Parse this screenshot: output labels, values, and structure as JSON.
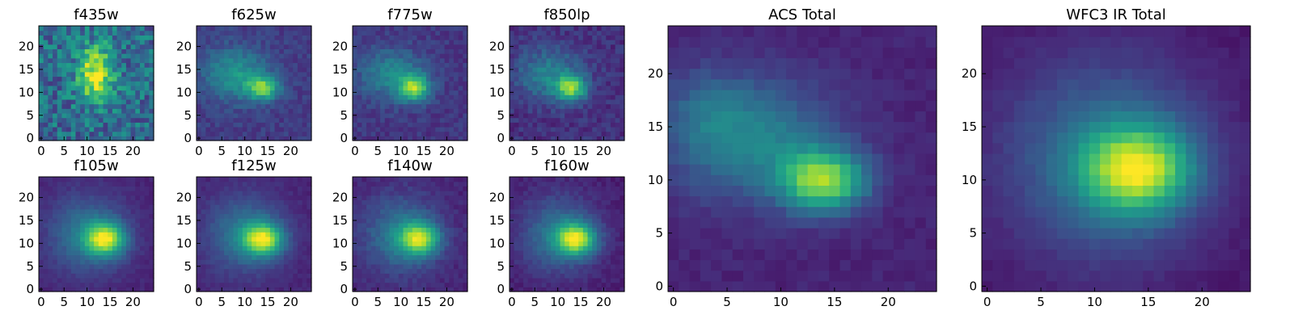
{
  "figure": {
    "colormap": "viridis",
    "colormap_stops": [
      "#440154",
      "#482878",
      "#3e4989",
      "#31688e",
      "#26828e",
      "#1f9e89",
      "#35b779",
      "#6ece58",
      "#b5de2b",
      "#fde725"
    ]
  },
  "chart_data": [
    {
      "type": "heatmap",
      "title": "f435w",
      "grid_size": 25,
      "xlim": [
        0,
        24
      ],
      "ylim": [
        0,
        24
      ],
      "xticks": [
        0,
        5,
        10,
        15,
        20
      ],
      "yticks": [
        0,
        5,
        10,
        15,
        20
      ],
      "values": "25x25 pixel image; bright blob centered near (12, 13), noisy background"
    },
    {
      "type": "heatmap",
      "title": "f625w",
      "grid_size": 25,
      "xlim": [
        0,
        24
      ],
      "ylim": [
        0,
        24
      ],
      "xticks": [
        0,
        5,
        10,
        15,
        20
      ],
      "yticks": [
        0,
        5,
        10,
        15,
        20
      ],
      "values": "25x25 pixel image; bright core near (14, 11), extended emission toward upper-left"
    },
    {
      "type": "heatmap",
      "title": "f775w",
      "grid_size": 25,
      "xlim": [
        0,
        24
      ],
      "ylim": [
        0,
        24
      ],
      "xticks": [
        0,
        5,
        10,
        15,
        20
      ],
      "yticks": [
        0,
        5,
        10,
        15,
        20
      ],
      "values": "25x25 pixel image; bright core near (13, 11)"
    },
    {
      "type": "heatmap",
      "title": "f850lp",
      "grid_size": 25,
      "xlim": [
        0,
        24
      ],
      "ylim": [
        0,
        24
      ],
      "xticks": [
        0,
        5,
        10,
        15,
        20
      ],
      "yticks": [
        0,
        5,
        10,
        15,
        20
      ],
      "values": "25x25 pixel image; bright core near (13, 11)"
    },
    {
      "type": "heatmap",
      "title": "f105w",
      "grid_size": 25,
      "xlim": [
        0,
        24
      ],
      "ylim": [
        0,
        24
      ],
      "xticks": [
        0,
        5,
        10,
        15,
        20
      ],
      "yticks": [
        0,
        5,
        10,
        15,
        20
      ],
      "values": "25x25 pixel image; smooth bright core near (14, 11)"
    },
    {
      "type": "heatmap",
      "title": "f125w",
      "grid_size": 25,
      "xlim": [
        0,
        24
      ],
      "ylim": [
        0,
        24
      ],
      "xticks": [
        0,
        5,
        10,
        15,
        20
      ],
      "yticks": [
        0,
        5,
        10,
        15,
        20
      ],
      "values": "25x25 pixel image; smooth bright core near (14, 11)"
    },
    {
      "type": "heatmap",
      "title": "f140w",
      "grid_size": 25,
      "xlim": [
        0,
        24
      ],
      "ylim": [
        0,
        24
      ],
      "xticks": [
        0,
        5,
        10,
        15,
        20
      ],
      "yticks": [
        0,
        5,
        10,
        15,
        20
      ],
      "values": "25x25 pixel image; smooth bright core near (14, 11)"
    },
    {
      "type": "heatmap",
      "title": "f160w",
      "grid_size": 25,
      "xlim": [
        0,
        24
      ],
      "ylim": [
        0,
        24
      ],
      "xticks": [
        0,
        5,
        10,
        15,
        20
      ],
      "yticks": [
        0,
        5,
        10,
        15,
        20
      ],
      "values": "25x25 pixel image; smooth bright core near (14, 11)"
    },
    {
      "type": "heatmap",
      "title": "ACS Total",
      "grid_size": 25,
      "xlim": [
        0,
        24
      ],
      "ylim": [
        0,
        24
      ],
      "xticks": [
        0,
        5,
        10,
        15,
        20
      ],
      "yticks": [
        0,
        5,
        10,
        15,
        20
      ],
      "values": "25x25 pixel image; peak near (14, 10), extended emission toward (3, 17)"
    },
    {
      "type": "heatmap",
      "title": "WFC3 IR Total",
      "grid_size": 25,
      "xlim": [
        0,
        24
      ],
      "ylim": [
        0,
        24
      ],
      "xticks": [
        0,
        5,
        10,
        15,
        20
      ],
      "yticks": [
        0,
        5,
        10,
        15,
        20
      ],
      "values": "25x25 pixel image; smooth peak near (14, 11)"
    }
  ]
}
